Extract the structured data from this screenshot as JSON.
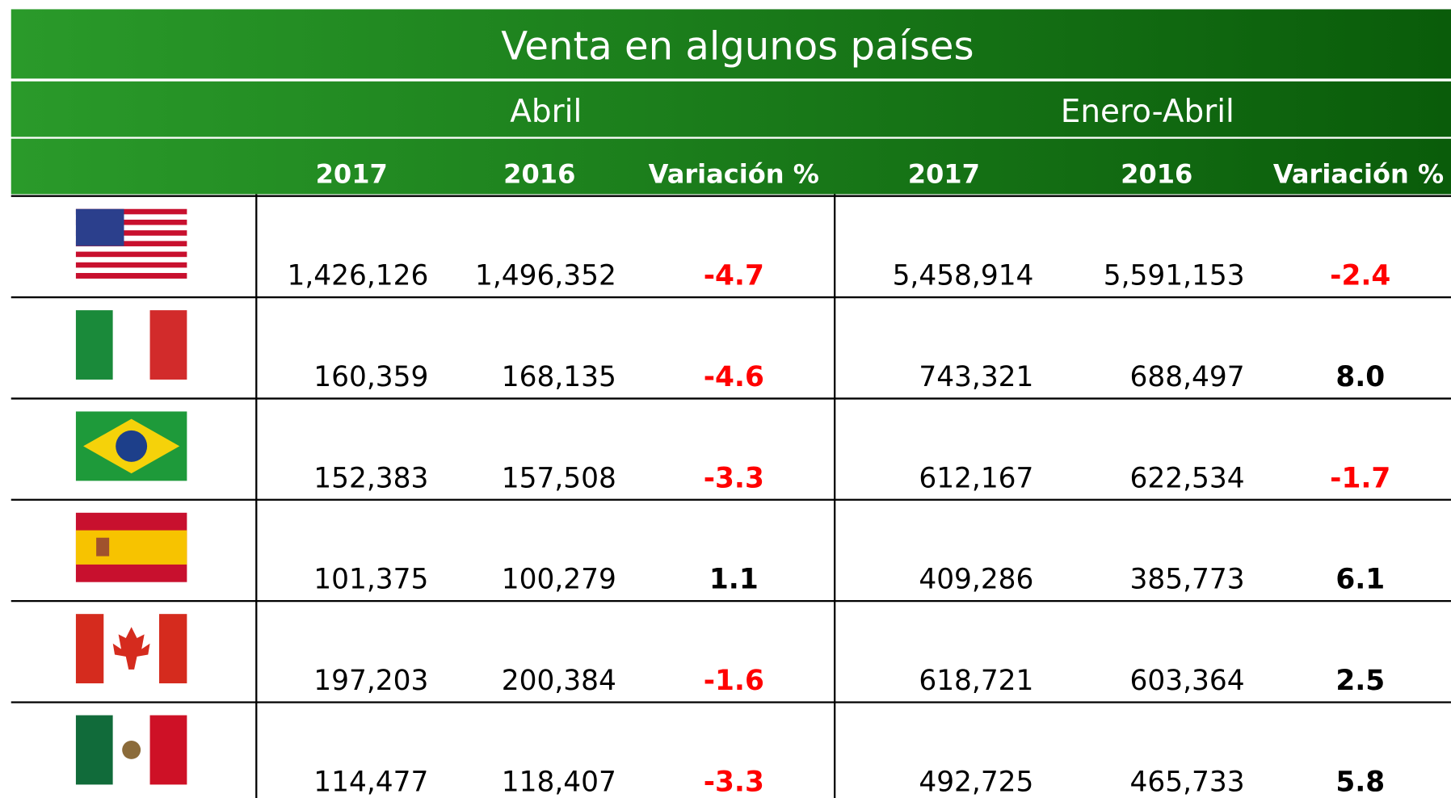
{
  "header": {
    "title": "Venta en algunos países",
    "groups": [
      "Abril",
      "Enero-Abril"
    ],
    "columns": [
      "2017",
      "2016",
      "Variación %",
      "2017",
      "2016",
      "Variación %"
    ]
  },
  "table": {
    "rows": [
      [
        "1,426,126",
        "1,496,352",
        "-4.7",
        "5,458,914",
        "5,591,153",
        "-2.4"
      ],
      [
        "160,359",
        "168,135",
        "-4.6",
        "743,321",
        "688,497",
        "8.0"
      ],
      [
        "152,383",
        "157,508",
        "-3.3",
        "612,167",
        "622,534",
        "-1.7"
      ],
      [
        "101,375",
        "100,279",
        "1.1",
        "409,286",
        "385,773",
        "6.1"
      ],
      [
        "197,203",
        "200,384",
        "-1.6",
        "618,721",
        "603,364",
        "2.5"
      ],
      [
        "114,477",
        "118,407",
        "-3.3",
        "492,725",
        "465,733",
        "5.8"
      ]
    ]
  }
}
